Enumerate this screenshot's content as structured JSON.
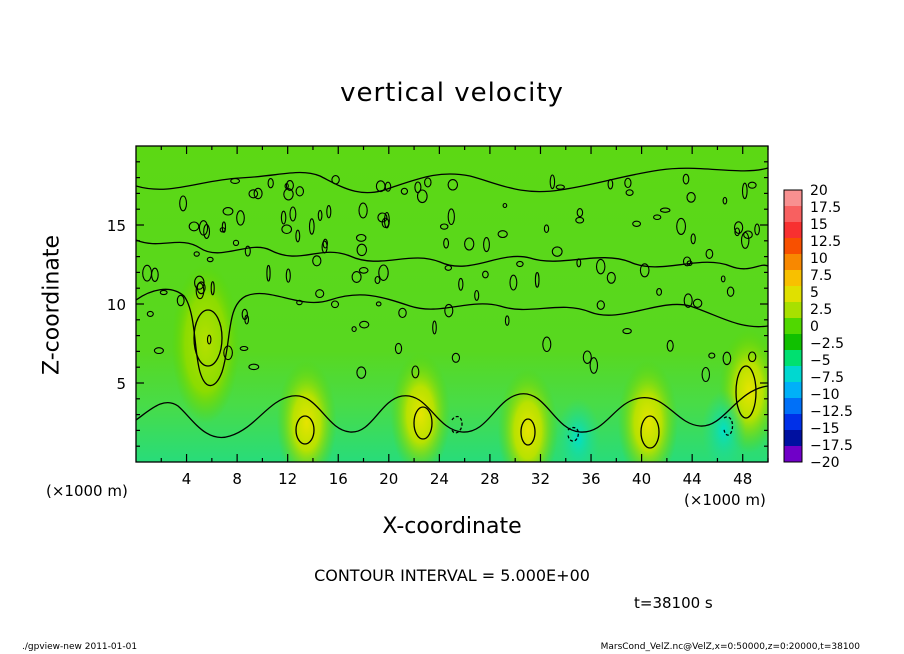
{
  "chart_data": {
    "type": "heatmap",
    "title": "vertical velocity",
    "xlabel": "X-coordinate",
    "ylabel": "Z-coordinate",
    "x_unit": "(×1000 m)",
    "xlim": [
      0,
      50
    ],
    "ylim": [
      0,
      20
    ],
    "x_ticks": [
      "4",
      "8",
      "12",
      "16",
      "20",
      "24",
      "28",
      "32",
      "36",
      "40",
      "44",
      "48"
    ],
    "y_ticks": [
      "5",
      "10",
      "15"
    ],
    "colorbar": {
      "labels": [
        "20",
        "17.5",
        "15",
        "12.5",
        "10",
        "7.5",
        "5",
        "2.5",
        "0",
        "−2.5",
        "−5",
        "−7.5",
        "−10",
        "−12.5",
        "−15",
        "−17.5",
        "−20"
      ],
      "colors": [
        "#f89090",
        "#f86060",
        "#f83030",
        "#f85000",
        "#f88800",
        "#f8c000",
        "#e0e000",
        "#a8e000",
        "#50d800",
        "#10c000",
        "#00e070",
        "#00d8d0",
        "#00b0f8",
        "#0070f8",
        "#0030e8",
        "#0010a0",
        "#7000c8"
      ]
    },
    "features": [
      {
        "kind": "updraft",
        "x": 5.5,
        "z": 7.5,
        "value": 2.5
      },
      {
        "kind": "updraft",
        "x": 13.5,
        "z": 2.5,
        "value": 5
      },
      {
        "kind": "updraft",
        "x": 22.5,
        "z": 3,
        "value": 5
      },
      {
        "kind": "updraft",
        "x": 31,
        "z": 2,
        "value": 5
      },
      {
        "kind": "updraft",
        "x": 40.5,
        "z": 2.5,
        "value": 5
      },
      {
        "kind": "updraft",
        "x": 48.5,
        "z": 4.5,
        "value": 5
      },
      {
        "kind": "downdraft",
        "x": 35,
        "z": 1.5,
        "value": -5
      },
      {
        "kind": "downdraft",
        "x": 46.5,
        "z": 2,
        "value": -5
      }
    ],
    "contour_interval_text": "CONTOUR INTERVAL = 5.000E+00"
  },
  "time_text": "t=38100 s",
  "footer_left": "./gpview-new  2011-01-01",
  "footer_right": "MarsCond_VelZ.nc@VelZ,x=0:50000,z=0:20000,t=38100"
}
